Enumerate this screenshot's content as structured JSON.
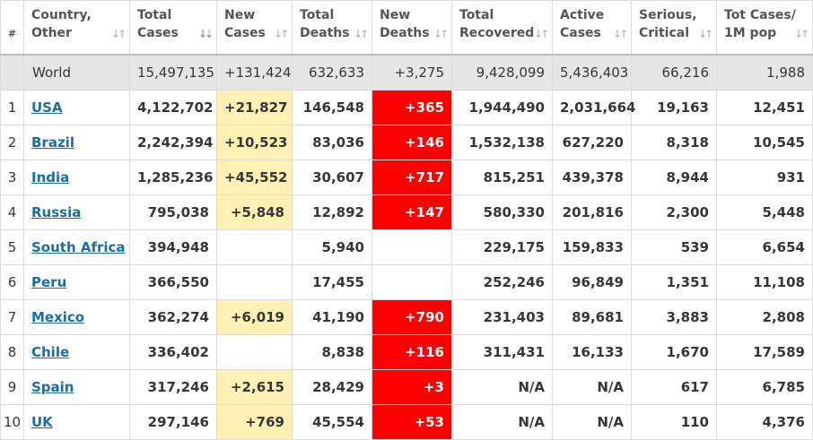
{
  "accent_colors": {
    "new_cases_highlight": "#fff0b3",
    "new_deaths_highlight": "#ff0000",
    "link": "#1a6ea8",
    "world_row": "#e6e6e6"
  },
  "headers": [
    {
      "line1": "#",
      "line2": "",
      "sort_icon": ""
    },
    {
      "line1": "Country,",
      "line2": "Other",
      "sort_icon": "sort-icon"
    },
    {
      "line1": "Total",
      "line2": "Cases",
      "sort_icon": "sort-descending-icon"
    },
    {
      "line1": "New",
      "line2": "Cases",
      "sort_icon": "sort-icon"
    },
    {
      "line1": "Total",
      "line2": "Deaths",
      "sort_icon": "sort-icon"
    },
    {
      "line1": "New",
      "line2": "Deaths",
      "sort_icon": "sort-icon"
    },
    {
      "line1": "Total",
      "line2": "Recovered",
      "sort_icon": "sort-icon"
    },
    {
      "line1": "Active",
      "line2": "Cases",
      "sort_icon": "sort-icon"
    },
    {
      "line1": "Serious,",
      "line2": "Critical",
      "sort_icon": "sort-icon"
    },
    {
      "line1": "Tot Cases/",
      "line2": "1M pop",
      "sort_icon": "sort-icon"
    }
  ],
  "world": {
    "country": "World",
    "total_cases": "15,497,135",
    "new_cases": "+131,424",
    "total_deaths": "632,633",
    "new_deaths": "+3,275",
    "total_recovered": "9,428,099",
    "active_cases": "5,436,403",
    "serious": "66,216",
    "per_million": "1,988"
  },
  "rows": [
    {
      "rank": "1",
      "country": "USA",
      "total_cases": "4,122,702",
      "new_cases": "+21,827",
      "total_deaths": "146,548",
      "new_deaths": "+365",
      "total_recovered": "1,944,490",
      "active_cases": "2,031,664",
      "serious": "19,163",
      "per_million": "12,451"
    },
    {
      "rank": "2",
      "country": "Brazil",
      "total_cases": "2,242,394",
      "new_cases": "+10,523",
      "total_deaths": "83,036",
      "new_deaths": "+146",
      "total_recovered": "1,532,138",
      "active_cases": "627,220",
      "serious": "8,318",
      "per_million": "10,545"
    },
    {
      "rank": "3",
      "country": "India",
      "total_cases": "1,285,236",
      "new_cases": "+45,552",
      "total_deaths": "30,607",
      "new_deaths": "+717",
      "total_recovered": "815,251",
      "active_cases": "439,378",
      "serious": "8,944",
      "per_million": "931"
    },
    {
      "rank": "4",
      "country": "Russia",
      "total_cases": "795,038",
      "new_cases": "+5,848",
      "total_deaths": "12,892",
      "new_deaths": "+147",
      "total_recovered": "580,330",
      "active_cases": "201,816",
      "serious": "2,300",
      "per_million": "5,448"
    },
    {
      "rank": "5",
      "country": "South Africa",
      "total_cases": "394,948",
      "new_cases": "",
      "total_deaths": "5,940",
      "new_deaths": "",
      "total_recovered": "229,175",
      "active_cases": "159,833",
      "serious": "539",
      "per_million": "6,654"
    },
    {
      "rank": "6",
      "country": "Peru",
      "total_cases": "366,550",
      "new_cases": "",
      "total_deaths": "17,455",
      "new_deaths": "",
      "total_recovered": "252,246",
      "active_cases": "96,849",
      "serious": "1,351",
      "per_million": "11,108"
    },
    {
      "rank": "7",
      "country": "Mexico",
      "total_cases": "362,274",
      "new_cases": "+6,019",
      "total_deaths": "41,190",
      "new_deaths": "+790",
      "total_recovered": "231,403",
      "active_cases": "89,681",
      "serious": "3,883",
      "per_million": "2,808"
    },
    {
      "rank": "8",
      "country": "Chile",
      "total_cases": "336,402",
      "new_cases": "",
      "total_deaths": "8,838",
      "new_deaths": "+116",
      "total_recovered": "311,431",
      "active_cases": "16,133",
      "serious": "1,670",
      "per_million": "17,589"
    },
    {
      "rank": "9",
      "country": "Spain",
      "total_cases": "317,246",
      "new_cases": "+2,615",
      "total_deaths": "28,429",
      "new_deaths": "+3",
      "total_recovered": "N/A",
      "active_cases": "N/A",
      "serious": "617",
      "per_million": "6,785"
    },
    {
      "rank": "10",
      "country": "UK",
      "total_cases": "297,146",
      "new_cases": "+769",
      "total_deaths": "45,554",
      "new_deaths": "+53",
      "total_recovered": "N/A",
      "active_cases": "N/A",
      "serious": "110",
      "per_million": "4,376"
    }
  ]
}
